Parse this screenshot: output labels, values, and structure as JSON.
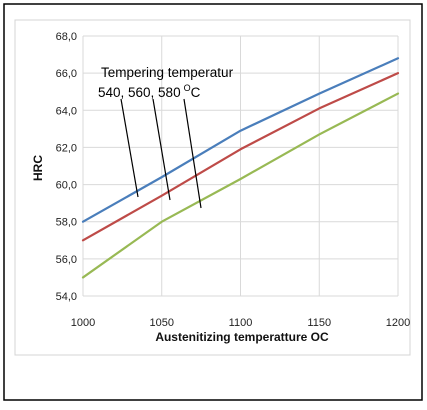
{
  "chart_data": {
    "type": "line",
    "title": "",
    "xlabel": "Austenitizing temperatture OC",
    "ylabel": "HRC",
    "x": [
      1000,
      1050,
      1100,
      1150,
      1200
    ],
    "xlim": [
      1000,
      1200
    ],
    "ylim": [
      54,
      68
    ],
    "x_ticks": [
      "1000",
      "1050",
      "1100",
      "1150",
      "1200"
    ],
    "y_ticks": [
      "54,0",
      "56,0",
      "58,0",
      "60,0",
      "62,0",
      "64,0",
      "66,0",
      "68,0"
    ],
    "grid": true,
    "legend": "none",
    "series": [
      {
        "color": "#4a7ebb",
        "values": [
          58.0,
          60.4,
          62.9,
          64.9,
          66.8
        ]
      },
      {
        "color": "#be4b48",
        "values": [
          57.0,
          59.4,
          61.9,
          64.1,
          66.0
        ]
      },
      {
        "color": "#98b954",
        "values": [
          55.0,
          58.0,
          60.3,
          62.7,
          64.9
        ]
      }
    ],
    "annotation": {
      "line1": "Tempering temperatur",
      "line2": "540, 560, 580",
      "superscript": "O",
      "unit": "C"
    }
  }
}
